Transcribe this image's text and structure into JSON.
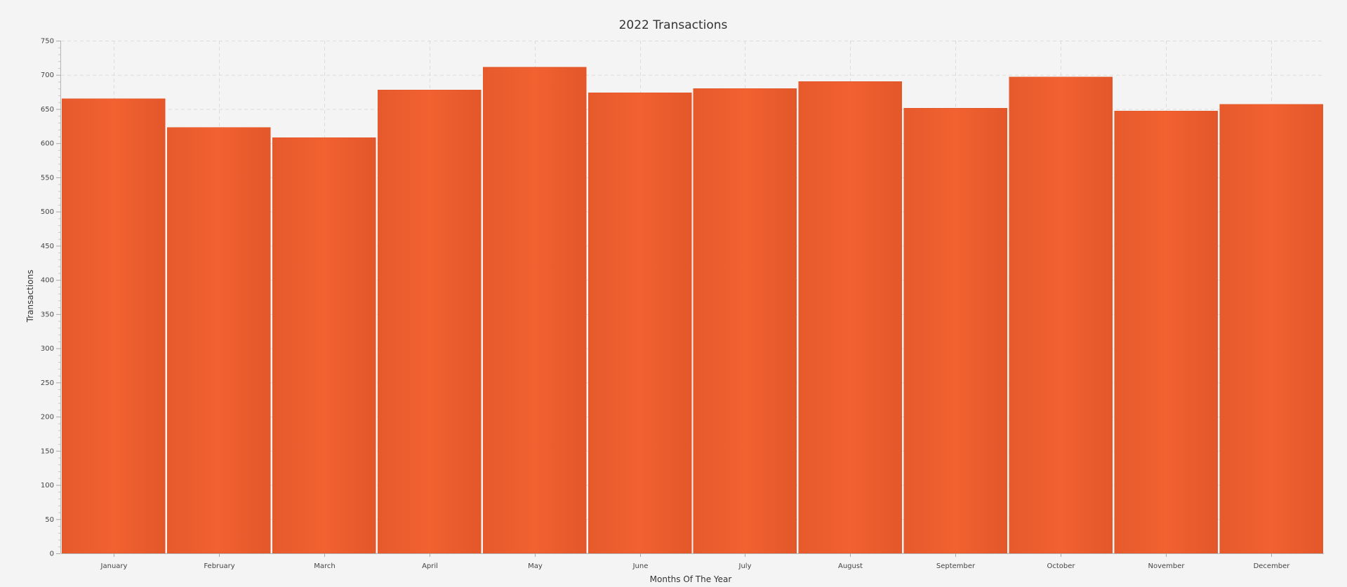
{
  "chart_data": {
    "type": "bar",
    "title": "2022 Transactions",
    "xlabel": "Months Of The Year",
    "ylabel": "Transactions",
    "categories": [
      "January",
      "February",
      "March",
      "April",
      "May",
      "June",
      "July",
      "August",
      "September",
      "October",
      "November",
      "December"
    ],
    "values": [
      665,
      623,
      608,
      678,
      711,
      674,
      680,
      690,
      651,
      697,
      647,
      657
    ],
    "ylim": [
      0,
      750
    ],
    "yticks": [
      "0",
      "50",
      "100",
      "150",
      "200",
      "250",
      "300",
      "350",
      "400",
      "450",
      "500",
      "550",
      "600",
      "650",
      "700",
      "750"
    ],
    "grid": true,
    "legend": "none",
    "colors": {
      "bar": "#f06030",
      "bar_edge": "#e3562a",
      "background": "#f4f4f4"
    }
  }
}
